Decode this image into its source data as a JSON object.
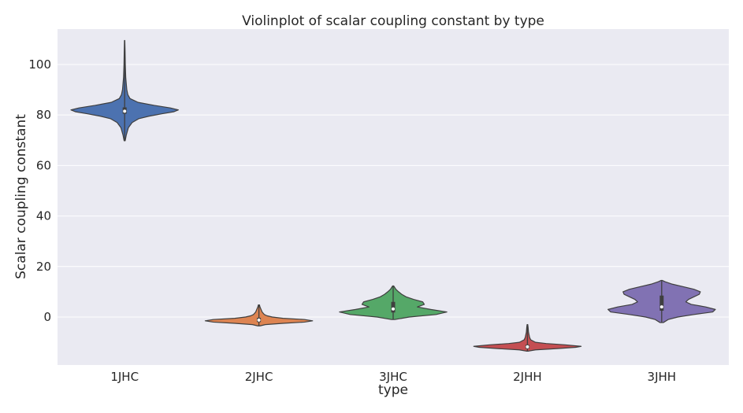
{
  "chart_data": {
    "type": "violin",
    "title": "Violinplot of scalar coupling constant by type",
    "xlabel": "type",
    "ylabel": "Scalar coupling constant",
    "ylim": [
      -19,
      114
    ],
    "yticks": [
      0,
      20,
      40,
      60,
      80,
      100
    ],
    "ytick_labels": [
      "0",
      "20",
      "40",
      "60",
      "80",
      "100"
    ],
    "grid": true,
    "categories": [
      "1JHC",
      "2JHC",
      "3JHC",
      "2JHH",
      "3JHH"
    ],
    "series": [
      {
        "name": "1JHC",
        "color": "#4c72b0",
        "min": 69.8,
        "max": 109.5,
        "q1": 80.5,
        "median": 81.5,
        "q3": 83.0,
        "density": [
          [
            69.8,
            0.01
          ],
          [
            72,
            0.03
          ],
          [
            75,
            0.07
          ],
          [
            77,
            0.14
          ],
          [
            78.5,
            0.26
          ],
          [
            79.5,
            0.45
          ],
          [
            80.5,
            0.7
          ],
          [
            81.3,
            0.92
          ],
          [
            82,
            1.0
          ],
          [
            82.8,
            0.85
          ],
          [
            83.8,
            0.55
          ],
          [
            85,
            0.25
          ],
          [
            86.5,
            0.1
          ],
          [
            88,
            0.06
          ],
          [
            90,
            0.04
          ],
          [
            95,
            0.02
          ],
          [
            100,
            0.012
          ],
          [
            105,
            0.008
          ],
          [
            109.5,
            0.003
          ]
        ]
      },
      {
        "name": "2JHC",
        "color": "#dd8452",
        "min": -3.5,
        "max": 4.8,
        "q1": -2.0,
        "median": -1.2,
        "q3": -0.3,
        "density": [
          [
            -3.5,
            0.02
          ],
          [
            -3,
            0.12
          ],
          [
            -2.5,
            0.45
          ],
          [
            -2,
            0.85
          ],
          [
            -1.5,
            1.0
          ],
          [
            -1,
            0.85
          ],
          [
            -0.5,
            0.45
          ],
          [
            0,
            0.25
          ],
          [
            0.5,
            0.15
          ],
          [
            1,
            0.1
          ],
          [
            2,
            0.06
          ],
          [
            3,
            0.04
          ],
          [
            4,
            0.02
          ],
          [
            4.8,
            0.01
          ]
        ]
      },
      {
        "name": "3JHC",
        "color": "#55a868",
        "min": -1.0,
        "max": 12.3,
        "q1": 1.8,
        "median": 3.2,
        "q3": 6.0,
        "density": [
          [
            -1,
            0.03
          ],
          [
            0,
            0.3
          ],
          [
            1,
            0.8
          ],
          [
            2,
            1.0
          ],
          [
            3,
            0.7
          ],
          [
            4,
            0.45
          ],
          [
            5,
            0.58
          ],
          [
            6,
            0.55
          ],
          [
            7,
            0.38
          ],
          [
            8,
            0.24
          ],
          [
            9,
            0.16
          ],
          [
            10,
            0.1
          ],
          [
            11,
            0.05
          ],
          [
            12.3,
            0.01
          ]
        ]
      },
      {
        "name": "2JHH",
        "color": "#c44e52",
        "min": -13.5,
        "max": -3.0,
        "q1": -12.5,
        "median": -11.8,
        "q3": -11.0,
        "density": [
          [
            -13.5,
            0.02
          ],
          [
            -13,
            0.15
          ],
          [
            -12.5,
            0.55
          ],
          [
            -12,
            0.9
          ],
          [
            -11.6,
            1.0
          ],
          [
            -11,
            0.7
          ],
          [
            -10.5,
            0.35
          ],
          [
            -10,
            0.15
          ],
          [
            -9,
            0.06
          ],
          [
            -8,
            0.04
          ],
          [
            -6,
            0.02
          ],
          [
            -4,
            0.012
          ],
          [
            -3,
            0.006
          ]
        ]
      },
      {
        "name": "3JHH",
        "color": "#8172b3",
        "min": -2.2,
        "max": 14.5,
        "q1": 2.5,
        "median": 4.0,
        "q3": 8.5,
        "density": [
          [
            -2.2,
            0.03
          ],
          [
            -1,
            0.12
          ],
          [
            0,
            0.3
          ],
          [
            1,
            0.6
          ],
          [
            2,
            0.95
          ],
          [
            3,
            1.0
          ],
          [
            4,
            0.82
          ],
          [
            5,
            0.55
          ],
          [
            6,
            0.45
          ],
          [
            7,
            0.5
          ],
          [
            8,
            0.6
          ],
          [
            9,
            0.7
          ],
          [
            10,
            0.72
          ],
          [
            11,
            0.6
          ],
          [
            12,
            0.4
          ],
          [
            13,
            0.2
          ],
          [
            14,
            0.06
          ],
          [
            14.5,
            0.01
          ]
        ]
      }
    ]
  }
}
